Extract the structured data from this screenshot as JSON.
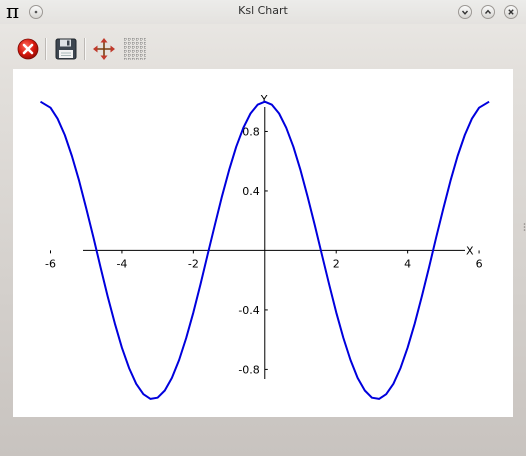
{
  "window": {
    "title": "Ksl Chart",
    "app_icon_glyph": "π"
  },
  "toolbar": {
    "buttons": [
      {
        "name": "close-chart-button",
        "icon": "close-red-circle-icon"
      },
      {
        "name": "save-button",
        "icon": "floppy-disk-icon"
      },
      {
        "name": "pan-button",
        "icon": "move-arrows-icon"
      },
      {
        "name": "grid-button",
        "icon": "grid-icon"
      }
    ]
  },
  "chart_data": {
    "type": "line",
    "function": "cos(x)",
    "xlabel": "X",
    "ylabel": "Y",
    "xlim": [
      -7.05,
      6.95
    ],
    "ylim": [
      -1.12,
      1.22
    ],
    "x_ticks": [
      -6,
      -4,
      -2,
      2,
      4,
      6
    ],
    "x_tick_labels": [
      "-6",
      "-4",
      "-2",
      "2",
      "4",
      "6"
    ],
    "y_ticks": [
      0.8,
      0.4,
      -0.4,
      -0.8
    ],
    "y_tick_labels": [
      "0.8",
      "0.4",
      "-0.4",
      "-0.8"
    ],
    "series": [
      {
        "color": "#0000dd",
        "x": [
          -6.28,
          -6.0,
          -5.8,
          -5.6,
          -5.4,
          -5.2,
          -5.0,
          -4.8,
          -4.6,
          -4.4,
          -4.2,
          -4.0,
          -3.8,
          -3.6,
          -3.4,
          -3.2,
          -3.0,
          -2.8,
          -2.6,
          -2.4,
          -2.2,
          -2.0,
          -1.8,
          -1.6,
          -1.4,
          -1.2,
          -1.0,
          -0.8,
          -0.6,
          -0.4,
          -0.2,
          0.0,
          0.2,
          0.4,
          0.6,
          0.8,
          1.0,
          1.2,
          1.4,
          1.6,
          1.8,
          2.0,
          2.2,
          2.4,
          2.6,
          2.8,
          3.0,
          3.2,
          3.4,
          3.6,
          3.8,
          4.0,
          4.2,
          4.4,
          4.6,
          4.8,
          5.0,
          5.2,
          5.4,
          5.6,
          5.8,
          6.0,
          6.28
        ],
        "y": [
          1.0,
          0.96,
          0.886,
          0.776,
          0.635,
          0.469,
          0.284,
          0.088,
          -0.112,
          -0.307,
          -0.49,
          -0.654,
          -0.791,
          -0.897,
          -0.967,
          -0.998,
          -0.99,
          -0.942,
          -0.857,
          -0.737,
          -0.589,
          -0.416,
          -0.227,
          -0.029,
          0.17,
          0.362,
          0.54,
          0.697,
          0.825,
          0.921,
          0.98,
          1.0,
          0.98,
          0.921,
          0.825,
          0.697,
          0.54,
          0.362,
          0.17,
          -0.029,
          -0.227,
          -0.416,
          -0.589,
          -0.737,
          -0.857,
          -0.942,
          -0.99,
          -0.998,
          -0.967,
          -0.897,
          -0.791,
          -0.654,
          -0.49,
          -0.307,
          -0.112,
          0.088,
          0.284,
          0.469,
          0.635,
          0.776,
          0.886,
          0.96,
          1.0
        ]
      }
    ]
  }
}
